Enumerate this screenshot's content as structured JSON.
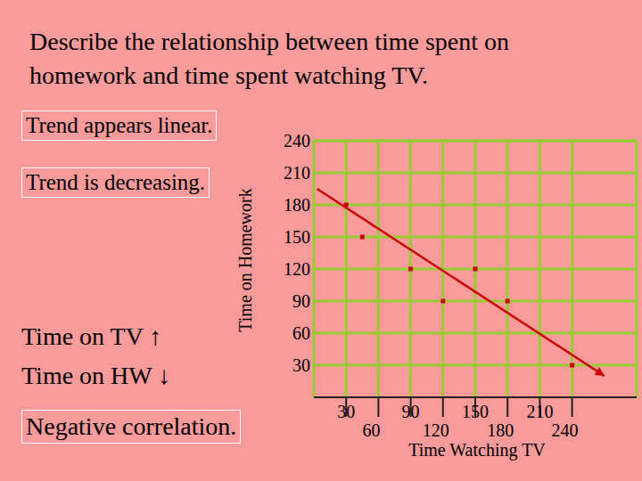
{
  "chart_data": {
    "type": "scatter",
    "title": "Describe the relationship between time spent on homework and time spent watching TV.",
    "xlabel": "Time Watching TV",
    "ylabel": "Time on Homework",
    "x": [
      30,
      45,
      90,
      120,
      150,
      180,
      240
    ],
    "values": [
      180,
      150,
      120,
      90,
      120,
      90,
      30
    ],
    "color": "#cc0000",
    "marker": "square",
    "xlim": [
      0,
      300
    ],
    "ylim": [
      0,
      240
    ],
    "xticks": [
      30,
      60,
      90,
      120,
      150,
      180,
      210,
      240
    ],
    "yticks": [
      30,
      60,
      90,
      120,
      150,
      180,
      210,
      240
    ],
    "grid": true,
    "trend_line": {
      "x": [
        3,
        270
      ],
      "values": [
        195,
        20
      ],
      "color": "#cc0000",
      "line_style": "solid",
      "marker": "arrow"
    },
    "annotations": [
      "Trend appears linear.",
      "Trend is decreasing.",
      "Time on TV ↑",
      "Time on HW ↓",
      "Negative correlation."
    ]
  }
}
